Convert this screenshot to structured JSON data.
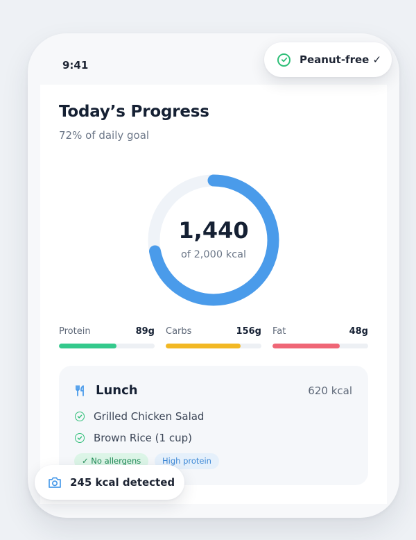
{
  "status_bar": {
    "time": "9:41"
  },
  "badge": {
    "label": "Peanut-free ✓",
    "icon": "check-circle-icon",
    "color": "#2fbf78"
  },
  "progress": {
    "title": "Today’s Progress",
    "subtitle": "72% of daily goal",
    "goal_fraction": 0.72,
    "calories_value": "1,440",
    "calories_caption": "of 2,000 kcal",
    "ring_color": "#4a9bea",
    "track_color": "#eff3f8"
  },
  "macros": [
    {
      "name": "Protein",
      "value": "89g",
      "fill_fraction": 0.6,
      "color": "#34c98c"
    },
    {
      "name": "Carbs",
      "value": "156g",
      "fill_fraction": 0.78,
      "color": "#f2b824"
    },
    {
      "name": "Fat",
      "value": "48g",
      "fill_fraction": 0.7,
      "color": "#ef6676"
    }
  ],
  "meal": {
    "icon": "fork-knife-icon",
    "name": "Lunch",
    "kcal": "620 kcal",
    "items": [
      "Grilled Chicken Salad",
      "Brown Rice (1 cup)"
    ],
    "tags": [
      "✓ No allergens",
      "High protein"
    ]
  },
  "detection": {
    "icon": "camera-icon",
    "label": "245 kcal detected"
  }
}
